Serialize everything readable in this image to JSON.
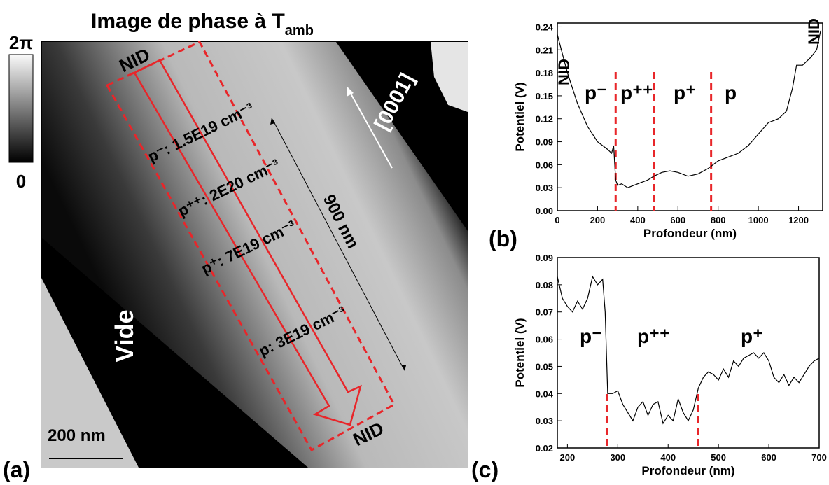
{
  "panel_a": {
    "title": "Image de phase à T",
    "title_sub": "amb",
    "colorbar_max": "2π",
    "colorbar_min": "0",
    "nid_top": "NID",
    "nid_bottom": "NID",
    "layers": [
      "p⁻: 1.5E19 cm⁻³",
      "p⁺⁺: 2E20 cm⁻³",
      "p⁺: 7E19 cm⁻³",
      "p: 3E19 cm⁻³"
    ],
    "length": "900 nm",
    "direction": "[0001]",
    "vacuum": "Vide",
    "scale_bar": "200 nm",
    "panel_label": "(a)"
  },
  "chart_data": [
    {
      "type": "line",
      "panel_label": "(b)",
      "xlabel": "Profondeur (nm)",
      "ylabel": "Potentiel (V)",
      "color": "#000000",
      "x": [
        0,
        20,
        50,
        100,
        150,
        200,
        250,
        270,
        280,
        290,
        300,
        320,
        350,
        400,
        450,
        480,
        520,
        560,
        600,
        650,
        700,
        750,
        800,
        850,
        900,
        950,
        1000,
        1050,
        1100,
        1140,
        1170,
        1190,
        1220,
        1260,
        1290,
        1310
      ],
      "values": [
        0.23,
        0.21,
        0.18,
        0.14,
        0.11,
        0.09,
        0.08,
        0.075,
        0.085,
        0.04,
        0.033,
        0.035,
        0.03,
        0.035,
        0.04,
        0.045,
        0.05,
        0.052,
        0.05,
        0.045,
        0.048,
        0.055,
        0.065,
        0.07,
        0.075,
        0.085,
        0.1,
        0.115,
        0.12,
        0.13,
        0.16,
        0.19,
        0.19,
        0.2,
        0.21,
        0.235
      ],
      "xlim": [
        0,
        1320
      ],
      "xticks": [
        0,
        200,
        400,
        600,
        800,
        1000,
        1200
      ],
      "ylim": [
        0,
        0.245
      ],
      "yticks": [
        {
          "value": 0,
          "label": "0.00"
        },
        0.03,
        0.06,
        0.09,
        0.12,
        0.15,
        0.18,
        0.21,
        0.24
      ],
      "dividers": [
        290,
        480,
        765
      ],
      "divider_color": "#e8262a",
      "annotations": [
        "NID",
        "p⁻",
        "p⁺⁺",
        "p⁺",
        "p",
        "NID"
      ]
    },
    {
      "type": "line",
      "panel_label": "(c)",
      "xlabel": "Profondeur (nm)",
      "ylabel": "Potentiel (V)",
      "color": "#000000",
      "x": [
        180,
        190,
        200,
        210,
        220,
        230,
        240,
        250,
        260,
        270,
        275,
        280,
        290,
        300,
        310,
        320,
        330,
        340,
        350,
        360,
        370,
        380,
        390,
        400,
        410,
        420,
        430,
        440,
        450,
        460,
        470,
        480,
        490,
        500,
        510,
        520,
        530,
        540,
        550,
        560,
        570,
        580,
        590,
        600,
        610,
        620,
        630,
        640,
        650,
        660,
        670,
        680,
        690,
        700
      ],
      "values": [
        0.083,
        0.075,
        0.072,
        0.07,
        0.074,
        0.071,
        0.075,
        0.083,
        0.08,
        0.082,
        0.07,
        0.04,
        0.04,
        0.041,
        0.036,
        0.033,
        0.03,
        0.035,
        0.037,
        0.032,
        0.036,
        0.037,
        0.029,
        0.032,
        0.03,
        0.038,
        0.033,
        0.03,
        0.034,
        0.042,
        0.046,
        0.048,
        0.047,
        0.045,
        0.049,
        0.046,
        0.052,
        0.05,
        0.053,
        0.054,
        0.055,
        0.053,
        0.055,
        0.052,
        0.046,
        0.044,
        0.047,
        0.043,
        0.046,
        0.044,
        0.047,
        0.05,
        0.052,
        0.053
      ],
      "xlim": [
        180,
        700
      ],
      "xticks": [
        200,
        300,
        400,
        500,
        600,
        700
      ],
      "ylim": [
        0.02,
        0.09
      ],
      "yticks": [
        0.02,
        0.03,
        0.04,
        0.05,
        0.06,
        0.07,
        0.08,
        0.09
      ],
      "dividers": [
        278,
        460
      ],
      "divider_color": "#e8262a",
      "annotations": [
        "p⁻",
        "p⁺⁺",
        "p⁺"
      ]
    }
  ]
}
